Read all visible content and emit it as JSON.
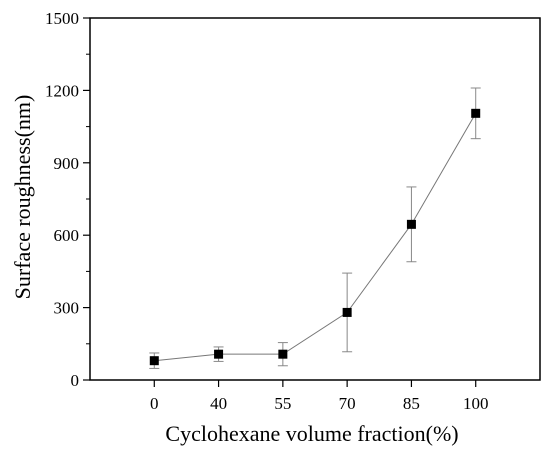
{
  "chart_data": {
    "type": "scatter",
    "title": "",
    "xlabel": "Cyclohexane volume fraction(%)",
    "ylabel": "Surface roughness(nm)",
    "categories": [
      "0",
      "40",
      "55",
      "70",
      "85",
      "100"
    ],
    "ylim": [
      0,
      1500
    ],
    "yticks": [
      0,
      300,
      600,
      900,
      1200,
      1500
    ],
    "grid": false,
    "legend": "none",
    "connected_line": true,
    "marker": "square",
    "colors": {
      "marker": "#000000",
      "line": "#777777",
      "error_bar": "#888888",
      "axis": "#000000"
    },
    "series": [
      {
        "values": [
          80,
          107,
          107,
          280,
          645,
          1105
        ],
        "errors": [
          32,
          30,
          48,
          163,
          155,
          105
        ]
      }
    ]
  }
}
